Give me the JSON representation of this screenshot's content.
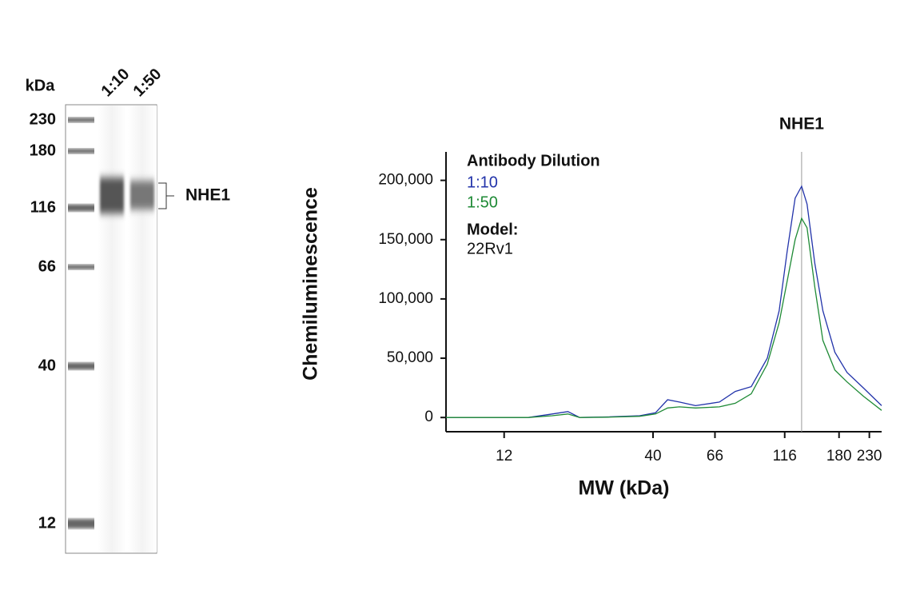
{
  "blot": {
    "unit_label": "kDa",
    "lanes": [
      "1:10",
      "1:50"
    ],
    "markers": [
      "230",
      "180",
      "116",
      "66",
      "40",
      "12"
    ],
    "band_label": "NHE1"
  },
  "chart_data": {
    "type": "line",
    "xlabel": "MW (kDa)",
    "ylabel": "Chemiluminescence",
    "x": [
      7.5,
      9.9,
      14.6,
      17.7,
      20.1,
      22.1,
      27.7,
      35.9,
      40.8,
      45.0,
      49.5,
      56.4,
      68.4,
      77.8,
      88.5,
      100.7,
      110.9,
      118.3,
      126.2,
      133,
      139,
      148,
      158,
      174,
      192,
      219,
      254
    ],
    "series": [
      {
        "name": "1:10",
        "color": "#2233aa",
        "values": [
          0,
          0,
          0,
          3000,
          5000,
          0,
          500,
          1500,
          4000,
          15000,
          13000,
          10000,
          13000,
          22000,
          26000,
          50000,
          90000,
          140000,
          185000,
          195000,
          180000,
          130000,
          90000,
          55000,
          38000,
          25000,
          10000
        ]
      },
      {
        "name": "1:50",
        "color": "#1e8a35",
        "values": [
          0,
          0,
          0,
          1500,
          3000,
          0,
          300,
          1000,
          3000,
          8000,
          9000,
          8000,
          9000,
          12000,
          20000,
          45000,
          80000,
          115000,
          150000,
          168000,
          160000,
          110000,
          65000,
          40000,
          30000,
          18000,
          6000
        ]
      }
    ],
    "xscale": "log",
    "xlim": [
      7.5,
      254
    ],
    "xticks": [
      12,
      40,
      66,
      116,
      180,
      230
    ],
    "ylim": [
      -12000,
      224000
    ],
    "yticks": [
      0,
      {
        "value": 50000,
        "label": "50,000"
      },
      {
        "value": 100000,
        "label": "100,000"
      },
      {
        "value": 150000,
        "label": "150,000"
      },
      {
        "value": 200000,
        "label": "200,000"
      }
    ],
    "legend_title": "Antibody Dilution",
    "legend_corner": "upper left",
    "model_label": "Model:",
    "model": "22Rv1",
    "annotation": {
      "text": "NHE1",
      "x": 133
    }
  }
}
